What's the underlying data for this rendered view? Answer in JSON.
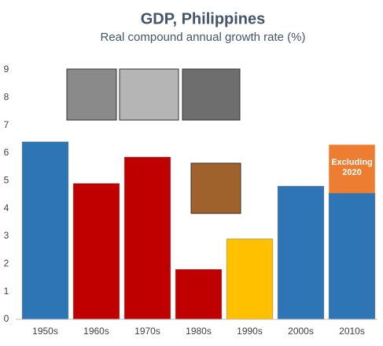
{
  "chart_data": {
    "type": "bar",
    "title": "GDP, Philippines",
    "subtitle": "Real compound annual growth rate (%)",
    "categories": [
      "1950s",
      "1960s",
      "1970s",
      "1980s",
      "1990s",
      "2000s",
      "2010s"
    ],
    "values": [
      6.4,
      4.9,
      5.85,
      1.8,
      2.9,
      4.8,
      4.55
    ],
    "colors": [
      "#2e75b6",
      "#c00000",
      "#c00000",
      "#c00000",
      "#ffc000",
      "#2e75b6",
      "#2e75b6"
    ],
    "stack": {
      "values": [
        null,
        null,
        null,
        null,
        null,
        null,
        1.75
      ],
      "color": "#ed7d31",
      "label": "Excluding 2020"
    },
    "ylim": [
      0,
      9
    ],
    "yticks": [
      0,
      1,
      2,
      3,
      4,
      5,
      6,
      7,
      8,
      9
    ],
    "grid": false
  }
}
